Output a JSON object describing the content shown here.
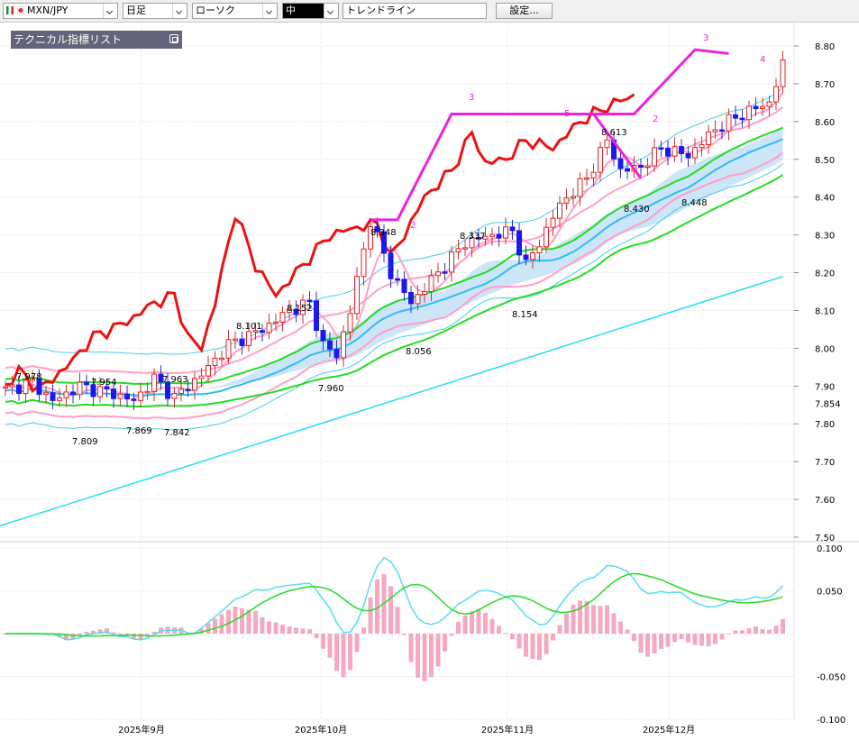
{
  "toolbar": {
    "symbol": "MXN/JPY",
    "period": "日足",
    "chart_type": "ローソク",
    "line_style": "中",
    "draw_tool": "トレンドライン",
    "settings_label": "設定..."
  },
  "indicator_panel": {
    "title": "テクニカル指標リスト"
  },
  "price_axis": {
    "labels": [
      "8.80",
      "8.70",
      "8.60",
      "8.50",
      "8.40",
      "8.30",
      "8.20",
      "8.10",
      "8.00",
      "7.90",
      "7.80",
      "7.70",
      "7.60",
      "7.50"
    ],
    "current": "7.854"
  },
  "osc_axis": {
    "labels": [
      "0.100",
      "0.050",
      "-0.050",
      "-0.100"
    ]
  },
  "time_axis": {
    "labels": [
      "2025年9月",
      "2025年10月",
      "2025年11月",
      "2025年12月"
    ]
  },
  "annotations": {
    "price_marks": [
      "7.978",
      "7.809",
      "7.954",
      "7.869",
      "7.963",
      "7.842",
      "8.101",
      "8.152",
      "7.960",
      "8.348",
      "8.056",
      "8.337",
      "8.154",
      "8.613",
      "8.430",
      "8.448"
    ],
    "wave_marks": [
      "2",
      "3",
      "5",
      "2",
      "3",
      "4"
    ]
  },
  "colors": {
    "toolbar_bg": "#f0f0f0",
    "panel_bg": "#63637a",
    "up_candle": "#e02020",
    "down_candle": "#1a1aee",
    "ma_green": "#22dd22",
    "ma_cyan": "#33bbee",
    "band_pink": "#ff9ec8",
    "bollinger_cyan": "#44ccee",
    "cloud_fill": "#c6e2f8",
    "lagging_red": "#ee1111",
    "trend_cyan": "#22e0f0",
    "wave_magenta": "#ee22dd"
  },
  "chart_data": {
    "type": "candlestick",
    "pair": "MXN/JPY",
    "timeframe": "日足",
    "y_range": [
      7.46,
      8.82
    ],
    "oscillator_range": [
      -0.1,
      0.1
    ],
    "n_bars": 116,
    "start_close": 7.89,
    "x_labels": [
      "2025年9月",
      "2025年10月",
      "2025年11月",
      "2025年12月"
    ],
    "anchors": [
      {
        "i": 0,
        "c": 7.89
      },
      {
        "i": 4,
        "c": 7.91
      },
      {
        "i": 7,
        "c": 7.86
      },
      {
        "i": 11,
        "c": 7.9
      },
      {
        "i": 16,
        "c": 7.88
      },
      {
        "i": 19,
        "c": 7.86
      },
      {
        "i": 22,
        "c": 7.92
      },
      {
        "i": 25,
        "c": 7.87
      },
      {
        "i": 29,
        "c": 7.93
      },
      {
        "i": 33,
        "c": 8.01
      },
      {
        "i": 38,
        "c": 8.05
      },
      {
        "i": 42,
        "c": 8.1
      },
      {
        "i": 45,
        "c": 8.12
      },
      {
        "i": 47,
        "c": 8.01
      },
      {
        "i": 49,
        "c": 7.98
      },
      {
        "i": 51,
        "c": 8.1
      },
      {
        "i": 54,
        "c": 8.34
      },
      {
        "i": 57,
        "c": 8.2
      },
      {
        "i": 60,
        "c": 8.12
      },
      {
        "i": 64,
        "c": 8.2
      },
      {
        "i": 68,
        "c": 8.28
      },
      {
        "i": 72,
        "c": 8.3
      },
      {
        "i": 75,
        "c": 8.31
      },
      {
        "i": 77,
        "c": 8.22
      },
      {
        "i": 79,
        "c": 8.28
      },
      {
        "i": 82,
        "c": 8.38
      },
      {
        "i": 86,
        "c": 8.45
      },
      {
        "i": 89,
        "c": 8.55
      },
      {
        "i": 91,
        "c": 8.47
      },
      {
        "i": 94,
        "c": 8.48
      },
      {
        "i": 97,
        "c": 8.53
      },
      {
        "i": 101,
        "c": 8.51
      },
      {
        "i": 105,
        "c": 8.58
      },
      {
        "i": 109,
        "c": 8.62
      },
      {
        "i": 113,
        "c": 8.65
      },
      {
        "i": 115,
        "c": 8.75
      }
    ],
    "wave_points": [
      [
        54,
        8.34
      ],
      [
        58,
        8.34
      ],
      [
        66,
        8.62
      ],
      [
        75,
        8.62
      ],
      [
        80,
        8.62
      ],
      [
        87,
        8.62
      ],
      [
        94,
        8.45
      ]
    ],
    "wave_points2": [
      [
        87,
        8.62
      ],
      [
        93,
        8.62
      ],
      [
        102,
        8.79
      ],
      [
        107,
        8.78
      ]
    ],
    "trend_line": [
      [
        0,
        7.53
      ],
      [
        115,
        8.19
      ]
    ]
  }
}
